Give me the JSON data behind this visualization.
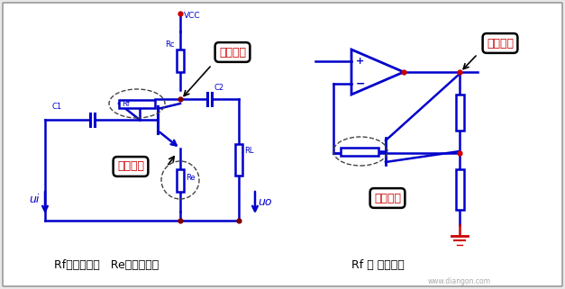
{
  "bg_color": "#e8e8e8",
  "inner_bg": "#ffffff",
  "blue": "#0000cc",
  "red": "#cc0000",
  "black": "#000000",
  "dark_gray": "#444444",
  "label_left": "Rf：电压反馈   Re：电流反馈",
  "label_right": "Rf ： 电流反馈",
  "watermark": "www.diangon.com",
  "direct_out": "直接输出",
  "indirect_out": "间接输出",
  "vcc": "VCC",
  "rc": "Rc",
  "rf": "Rf",
  "c1": "C1",
  "c2": "C2",
  "re": "Re",
  "rl": "RL",
  "ui": "ui",
  "uo": "uo"
}
